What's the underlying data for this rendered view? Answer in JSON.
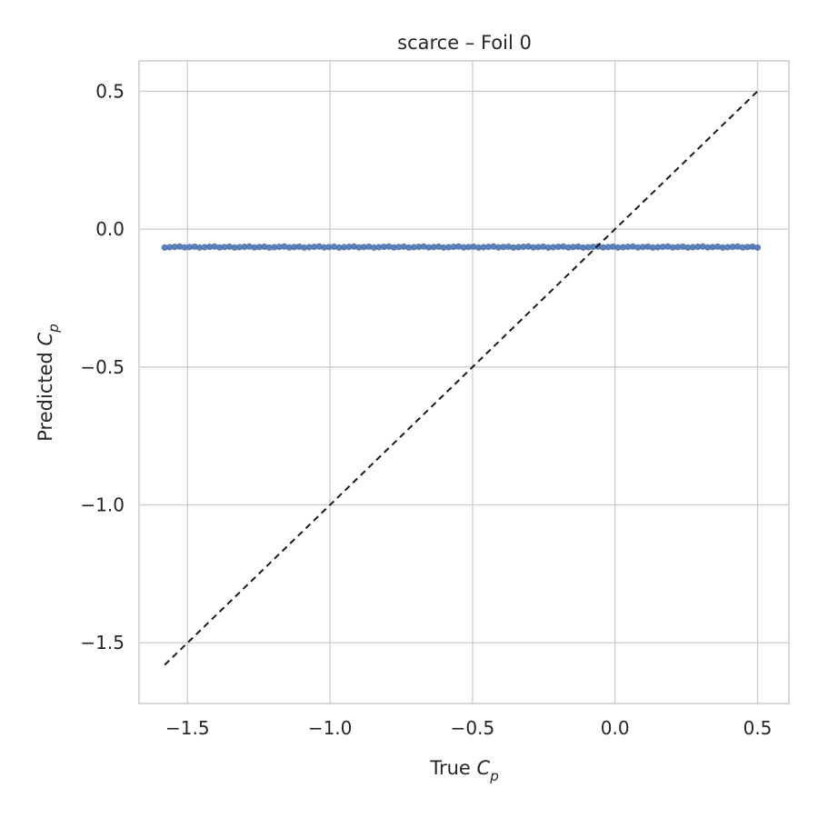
{
  "chart_data": {
    "type": "scatter",
    "title": "scarce – Foil 0",
    "xlabel": {
      "prefix": "True ",
      "symbol": "C",
      "subscript": "p"
    },
    "ylabel": {
      "prefix": "Predicted ",
      "symbol": "C",
      "subscript": "p"
    },
    "xlim": [
      -1.67,
      0.61
    ],
    "ylim": [
      -1.72,
      0.61
    ],
    "xticks": [
      -1.5,
      -1.0,
      -0.5,
      0.0,
      0.5
    ],
    "yticks": [
      -1.5,
      -1.0,
      -0.5,
      0.0,
      0.5
    ],
    "xtick_labels": [
      "−1.5",
      "−1.0",
      "−0.5",
      "0.0",
      "0.5"
    ],
    "ytick_labels": [
      "−1.5",
      "−1.0",
      "−0.5",
      "0.0",
      "0.5"
    ],
    "grid": true,
    "series": [
      {
        "kind": "scatter",
        "color": "#4c72b0",
        "x_range": [
          -1.58,
          0.5
        ],
        "y_constant": -0.065,
        "approx_point_count": 120
      },
      {
        "kind": "reference-line",
        "style": "dashed",
        "color": "#1a1a1a",
        "x": [
          -1.58,
          0.5
        ],
        "y": [
          -1.58,
          0.5
        ]
      }
    ]
  }
}
